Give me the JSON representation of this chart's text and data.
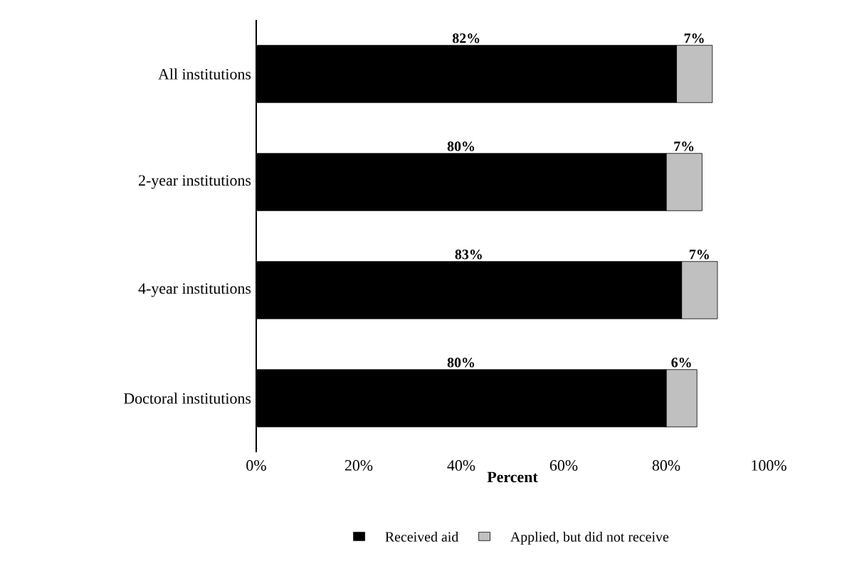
{
  "chart_data": {
    "type": "bar",
    "orientation": "horizontal",
    "stacked": true,
    "categories": [
      "All institutions",
      "2-year institutions",
      "4-year institutions",
      "Doctoral institutions"
    ],
    "series": [
      {
        "name": "Received aid",
        "color": "#000000",
        "values": [
          82,
          80,
          83,
          80
        ],
        "value_labels": [
          "82%",
          "80%",
          "83%",
          "80%"
        ]
      },
      {
        "name": "Applied, but did not receive",
        "color": "#c0c0c0",
        "values": [
          7,
          7,
          7,
          6
        ],
        "value_labels": [
          "7%",
          "7%",
          "7%",
          "6%"
        ]
      }
    ],
    "xlim": [
      0,
      100
    ],
    "xticks": [
      {
        "value": 0,
        "label": "0%"
      },
      {
        "value": 20,
        "label": "20%"
      },
      {
        "value": 40,
        "label": "40%"
      },
      {
        "value": 60,
        "label": "60%"
      },
      {
        "value": 80,
        "label": "80%"
      },
      {
        "value": 100,
        "label": "100%"
      }
    ],
    "xlabel": "Percent",
    "legend": "bottom",
    "grid": false
  }
}
